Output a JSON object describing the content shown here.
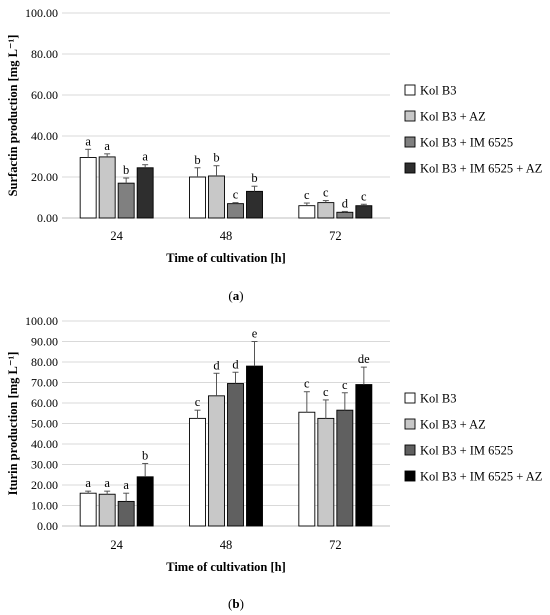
{
  "legend_colors": [
    "#ffffff",
    "#c8c8c8",
    "#808080",
    "#1e1e1e"
  ],
  "chart_data": [
    {
      "panel_label": "(a)",
      "type": "bar",
      "ylabel": "Surfactin production [mg L⁻¹]",
      "xlabel": "Time of cultivation [h]",
      "categories": [
        "24",
        "48",
        "72"
      ],
      "ylim": [
        0,
        100
      ],
      "yticks": [
        "0.00",
        "20.00",
        "40.00",
        "60.00",
        "80.00",
        "100.00"
      ],
      "grid": true,
      "legend_position": "right",
      "series": [
        {
          "name": "Kol B3",
          "color": "#ffffff",
          "values": [
            29.5,
            20.0,
            6.0
          ],
          "errors": [
            4.0,
            4.5,
            1.3
          ],
          "letters": [
            "a",
            "b",
            "c"
          ]
        },
        {
          "name": "Kol B3 + AZ",
          "color": "#c8c8c8",
          "values": [
            29.8,
            20.5,
            7.5
          ],
          "errors": [
            1.5,
            5.0,
            1.0
          ],
          "letters": [
            "a",
            "b",
            "c"
          ]
        },
        {
          "name": "Kol B3 + IM 6525",
          "color": "#808080",
          "values": [
            17.0,
            7.0,
            2.8
          ],
          "errors": [
            2.5,
            0.5,
            0.4
          ],
          "letters": [
            "b",
            "c",
            "d"
          ]
        },
        {
          "name": "Kol B3 + IM 6525 + AZ",
          "color": "#2e2e2e",
          "values": [
            24.5,
            13.0,
            6.0
          ],
          "errors": [
            1.5,
            2.5,
            0.7
          ],
          "letters": [
            "a",
            "b",
            "c"
          ]
        }
      ]
    },
    {
      "panel_label": "(b)",
      "type": "bar",
      "ylabel": "Iturin production [mg L⁻¹]",
      "xlabel": "Time of cultivation [h]",
      "categories": [
        "24",
        "48",
        "72"
      ],
      "ylim": [
        0,
        100
      ],
      "yticks": [
        "0.00",
        "10.00",
        "20.00",
        "30.00",
        "40.00",
        "50.00",
        "60.00",
        "70.00",
        "80.00",
        "90.00",
        "100.00"
      ],
      "grid": true,
      "legend_position": "right",
      "series": [
        {
          "name": "Kol B3",
          "color": "#ffffff",
          "values": [
            16.0,
            52.5,
            55.5
          ],
          "errors": [
            1.0,
            4.0,
            10.0
          ],
          "letters": [
            "a",
            "c",
            "c"
          ]
        },
        {
          "name": "Kol B3 + AZ",
          "color": "#c8c8c8",
          "values": [
            15.5,
            63.5,
            52.5
          ],
          "errors": [
            1.5,
            11.0,
            9.0
          ],
          "letters": [
            "a",
            "d",
            "c"
          ]
        },
        {
          "name": "Kol B3 + IM 6525",
          "color": "#606060",
          "values": [
            12.0,
            69.5,
            56.5
          ],
          "errors": [
            4.0,
            5.5,
            8.5
          ],
          "letters": [
            "a",
            "d",
            "c"
          ]
        },
        {
          "name": "Kol B3 + IM 6525 + AZ",
          "color": "#000000",
          "values": [
            24.0,
            78.0,
            69.0
          ],
          "errors": [
            6.5,
            12.0,
            8.5
          ],
          "letters": [
            "b",
            "e",
            "de"
          ]
        }
      ]
    }
  ]
}
